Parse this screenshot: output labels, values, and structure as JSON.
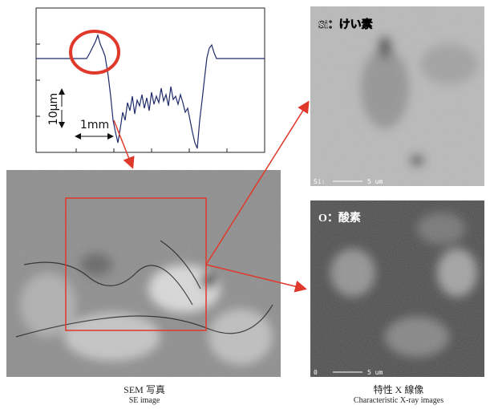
{
  "profile": {
    "y_scale_label": "10μm",
    "x_scale_label": "1mm"
  },
  "panels": {
    "sem": {
      "title": "SEM 写真",
      "subtitle": "SE image"
    },
    "xray": {
      "title": "特性 X 線像",
      "subtitle": "Characteristic X-ray images",
      "maps": [
        {
          "label": "Si：けい素",
          "corner_label": "Si:",
          "scale_label": "5 um"
        },
        {
          "label": "O：酸素",
          "corner_label": "0",
          "scale_label": "5 um"
        }
      ]
    }
  }
}
